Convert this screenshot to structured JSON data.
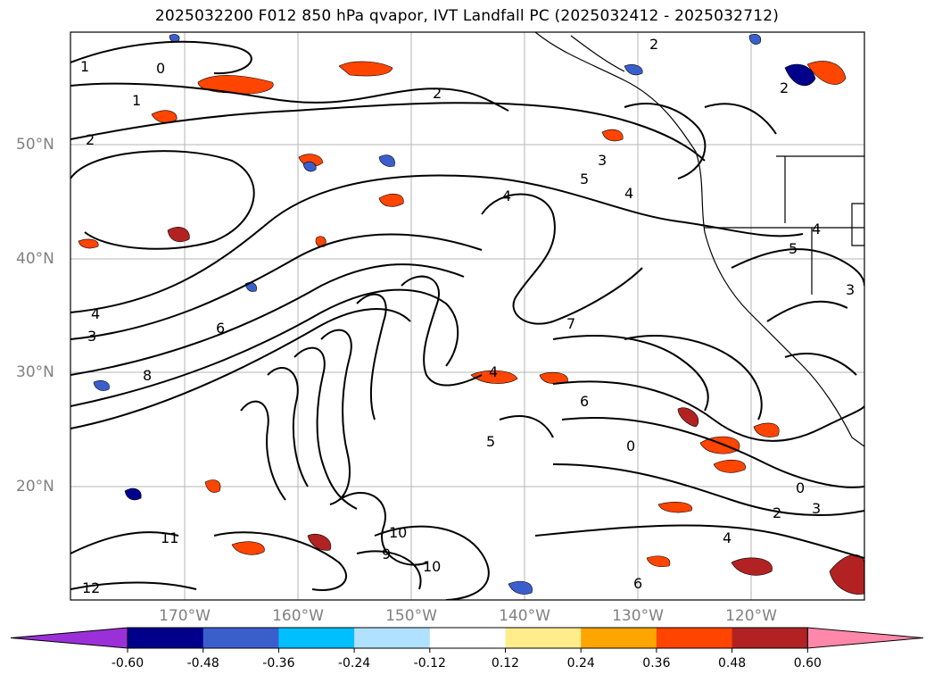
{
  "title": "2025032200 F012 850 hPa qvapor, IVT Landfall PC (2025032412 - 2025032712)",
  "lat_labels": [
    "50°N",
    "40°N",
    "30°N",
    "20°N"
  ],
  "lon_labels": [
    "170°W",
    "160°W",
    "150°W",
    "140°W",
    "130°W",
    "120°W"
  ],
  "colorbar": {
    "colors": [
      "#9b30d9",
      "#00008b",
      "#3a5fcd",
      "#00bfff",
      "#b0e2ff",
      "#ffffff",
      "#ffec8b",
      "#ffa500",
      "#ff4500",
      "#b22222",
      "#ff88aa"
    ],
    "boundaries": [
      "-0.60",
      "-0.48",
      "-0.36",
      "-0.24",
      "-0.12",
      "0.12",
      "0.24",
      "0.36",
      "0.48",
      "0.60"
    ]
  },
  "contour_labels": [
    {
      "id": "c1",
      "text": "1"
    },
    {
      "id": "c2",
      "text": "0"
    },
    {
      "id": "c3",
      "text": "1"
    },
    {
      "id": "c4",
      "text": "2"
    },
    {
      "id": "c5",
      "text": "2"
    },
    {
      "id": "c6",
      "text": "2"
    },
    {
      "id": "c7",
      "text": "3"
    },
    {
      "id": "c8",
      "text": "5"
    },
    {
      "id": "c9",
      "text": "4"
    },
    {
      "id": "c10",
      "text": "4"
    },
    {
      "id": "c11",
      "text": "4"
    },
    {
      "id": "c12",
      "text": "3"
    },
    {
      "id": "c13",
      "text": "6"
    },
    {
      "id": "c14",
      "text": "8"
    },
    {
      "id": "c15",
      "text": "7"
    },
    {
      "id": "c16",
      "text": "4"
    },
    {
      "id": "c17",
      "text": "6"
    },
    {
      "id": "c18",
      "text": "0"
    },
    {
      "id": "c19",
      "text": "0"
    },
    {
      "id": "c20",
      "text": "2"
    },
    {
      "id": "c21",
      "text": "3"
    },
    {
      "id": "c22",
      "text": "10"
    },
    {
      "id": "c23",
      "text": "10"
    },
    {
      "id": "c24",
      "text": "9"
    },
    {
      "id": "c25",
      "text": "5"
    },
    {
      "id": "c26",
      "text": "11"
    },
    {
      "id": "c27",
      "text": "12"
    },
    {
      "id": "c28",
      "text": "4"
    },
    {
      "id": "c29",
      "text": "5"
    },
    {
      "id": "c30",
      "text": "3"
    },
    {
      "id": "c31",
      "text": "6"
    },
    {
      "id": "c32",
      "text": "4"
    },
    {
      "id": "c33",
      "text": "2"
    }
  ]
}
